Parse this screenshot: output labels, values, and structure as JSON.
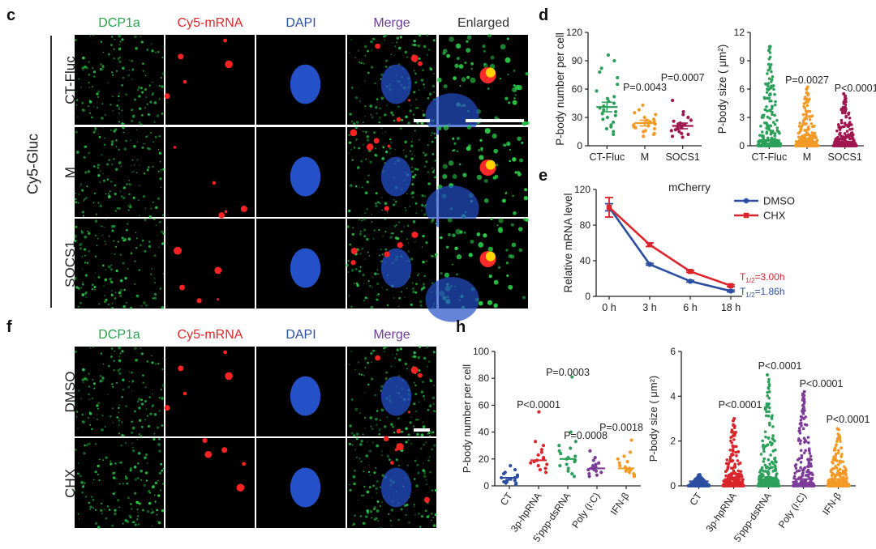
{
  "panels": {
    "c": {
      "letter": "c",
      "headers": [
        "DCP1a",
        "Cy5-mRNA",
        "DAPI",
        "Merge",
        "Enlarged"
      ],
      "header_colors": [
        "#2aa14a",
        "#e0262b",
        "#2c4fa6",
        "#6f3a9a",
        "#333333"
      ],
      "group_label": "Cy5-Gluc",
      "rows": [
        "CT-Fluc",
        "M",
        "SOCS1"
      ]
    },
    "f": {
      "letter": "f",
      "headers": [
        "DCP1a",
        "Cy5-mRNA",
        "DAPI",
        "Merge"
      ],
      "header_colors": [
        "#2aa14a",
        "#e0262b",
        "#2c4fa6",
        "#6f3a9a"
      ],
      "rows": [
        "DMSO",
        "CHX"
      ]
    },
    "d": {
      "letter": "d"
    },
    "e": {
      "letter": "e"
    },
    "h": {
      "letter": "h"
    }
  },
  "chart_data": [
    {
      "id": "d1",
      "type": "scatter",
      "ylabel": "P-body number per cell",
      "ylim": [
        0,
        120
      ],
      "yticks": [
        0,
        30,
        60,
        90,
        120
      ],
      "categories": [
        "CT-Fluc",
        "M",
        "SOCS1"
      ],
      "colors": [
        "#2ca05a",
        "#f39a26",
        "#a0174f"
      ],
      "means": [
        41,
        24,
        21
      ],
      "sem": [
        5,
        3,
        3
      ],
      "pvalues": [
        "",
        "P=0.0043",
        "P=0.0007"
      ],
      "points": [
        [
          96,
          90,
          82,
          78,
          72,
          65,
          58,
          52,
          50,
          47,
          45,
          42,
          40,
          38,
          36,
          34,
          32,
          30,
          28,
          25,
          22,
          20,
          18,
          15,
          12
        ],
        [
          43,
          38,
          35,
          33,
          30,
          28,
          27,
          26,
          25,
          24,
          23,
          22,
          21,
          20,
          19,
          18,
          16,
          15,
          13,
          12,
          10
        ],
        [
          48,
          36,
          33,
          30,
          27,
          26,
          24,
          23,
          22,
          21,
          20,
          19,
          18,
          17,
          16,
          15,
          13,
          12,
          10,
          9
        ]
      ]
    },
    {
      "id": "d2",
      "type": "scatter",
      "ylabel": "P-body size ( μm²)",
      "ylim": [
        0,
        12
      ],
      "yticks": [
        0,
        3,
        6,
        9,
        12
      ],
      "categories": [
        "CT-Fluc",
        "M",
        "SOCS1"
      ],
      "colors": [
        "#2ca05a",
        "#f39a26",
        "#a0174f"
      ],
      "means": [
        0.6,
        0.45,
        0.4
      ],
      "pvalues": [
        "",
        "P=0.0027",
        "P<0.0001"
      ],
      "max_values": [
        10.5,
        6.2,
        5.5
      ]
    },
    {
      "id": "e",
      "type": "line",
      "title": "mCherry",
      "ylabel": "Relative mRNA level",
      "ylim": [
        0,
        120
      ],
      "yticks": [
        0,
        40,
        80,
        120
      ],
      "categories": [
        "0 h",
        "3 h",
        "6 h",
        "18 h"
      ],
      "series": [
        {
          "name": "DMSO",
          "color": "#2b4ea2",
          "values": [
            100,
            36,
            17,
            6
          ],
          "err": [
            4,
            1,
            1,
            1
          ]
        },
        {
          "name": "CHX",
          "color": "#d9252b",
          "values": [
            100,
            58,
            28,
            12
          ],
          "err": [
            11,
            2,
            1,
            1
          ]
        }
      ],
      "annotations": [
        {
          "text": "T1/2=3.00h",
          "color": "#d9252b"
        },
        {
          "text": "T1/2=1.86h",
          "color": "#2b4ea2"
        }
      ]
    },
    {
      "id": "h1",
      "type": "scatter",
      "ylabel": "P-body number per cell",
      "ylim": [
        0,
        100
      ],
      "yticks": [
        0,
        20,
        40,
        60,
        80,
        100
      ],
      "categories": [
        "CT",
        "3p-hpRNA",
        "5'ppp-dsRNA",
        "Poly (I:C)",
        "IFN-β"
      ],
      "colors": [
        "#2b4ea2",
        "#d9252b",
        "#2ca05a",
        "#7d3c98",
        "#f39a26"
      ],
      "means": [
        6,
        19,
        20,
        13,
        13
      ],
      "pvalues": [
        "",
        "P<0.0001",
        "P=0.0003",
        "P=0.0008",
        "P=0.0018"
      ],
      "points": [
        [
          15,
          12,
          10,
          9,
          8,
          7,
          6,
          6,
          5,
          5,
          4,
          4,
          3,
          3,
          2,
          2,
          1
        ],
        [
          55,
          33,
          30,
          27,
          25,
          23,
          21,
          20,
          19,
          18,
          17,
          16,
          15,
          13,
          12,
          10
        ],
        [
          81,
          40,
          33,
          30,
          28,
          26,
          24,
          22,
          21,
          20,
          19,
          18,
          16,
          15,
          13,
          11,
          9,
          7
        ],
        [
          26,
          21,
          19,
          17,
          16,
          15,
          14,
          13,
          13,
          12,
          12,
          11,
          10,
          9,
          8,
          7
        ],
        [
          34,
          25,
          22,
          20,
          18,
          17,
          15,
          14,
          13,
          12,
          12,
          11,
          10,
          9,
          8,
          7
        ]
      ]
    },
    {
      "id": "h2",
      "type": "scatter",
      "ylabel": "P-body size ( μm²)",
      "ylim": [
        0,
        6
      ],
      "yticks": [
        0,
        2,
        4,
        6
      ],
      "categories": [
        "CT",
        "3p-hpRNA",
        "5'ppp-dsRNA",
        "Poly (I:C)",
        "IFN-β"
      ],
      "colors": [
        "#2b4ea2",
        "#d9252b",
        "#2ca05a",
        "#7d3c98",
        "#f39a26"
      ],
      "means": [
        0.2,
        0.3,
        0.3,
        0.3,
        0.3
      ],
      "pvalues": [
        "",
        "P<0.0001",
        "P<0.0001",
        "P<0.0001",
        "P<0.0001"
      ],
      "max_values": [
        0.5,
        3.0,
        4.95,
        4.2,
        2.55
      ]
    }
  ]
}
